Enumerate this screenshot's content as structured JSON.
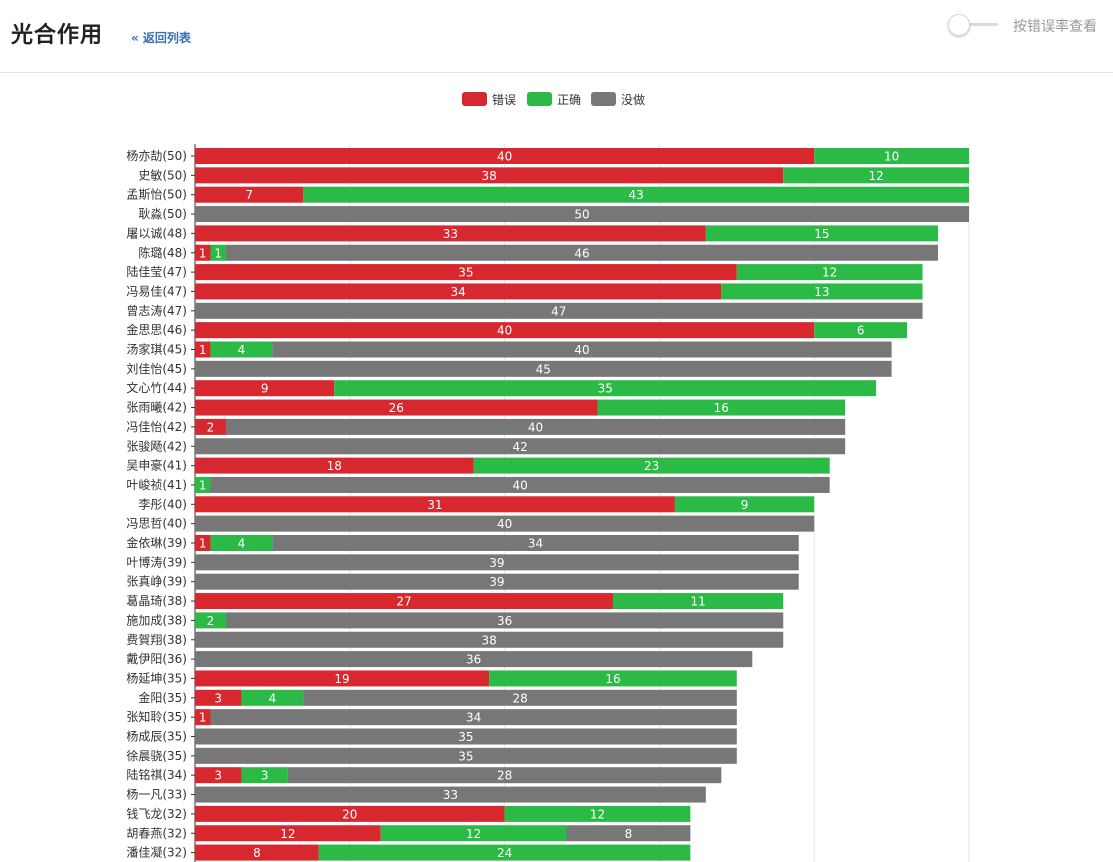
{
  "header": {
    "title": "光合作用",
    "back_link": "« 返回列表",
    "toggle_label": "按错误率查看",
    "toggle_on": false
  },
  "colors": {
    "wrong": "#d6282e",
    "correct": "#2cba47",
    "not_done": "#777777"
  },
  "chart_data": {
    "type": "bar",
    "orientation": "horizontal",
    "stacked": true,
    "xlim": [
      0,
      50
    ],
    "grid": true,
    "legend": "top",
    "series": [
      {
        "name": "错误",
        "color": "#d6282e",
        "values": [
          40,
          38,
          7,
          0,
          33,
          1,
          35,
          34,
          0,
          40,
          1,
          0,
          9,
          26,
          2,
          0,
          18,
          0,
          31,
          0,
          1,
          0,
          0,
          27,
          0,
          0,
          0,
          19,
          3,
          1,
          0,
          0,
          3,
          0,
          20,
          12,
          8
        ]
      },
      {
        "name": "正确",
        "color": "#2cba47",
        "values": [
          10,
          12,
          43,
          0,
          15,
          1,
          12,
          13,
          0,
          6,
          4,
          0,
          35,
          16,
          0,
          0,
          23,
          1,
          9,
          0,
          4,
          0,
          0,
          11,
          2,
          0,
          0,
          16,
          4,
          0,
          0,
          0,
          3,
          0,
          12,
          12,
          24
        ]
      },
      {
        "name": "没做",
        "color": "#777777",
        "values": [
          0,
          0,
          0,
          50,
          0,
          46,
          0,
          0,
          47,
          0,
          40,
          45,
          0,
          0,
          40,
          42,
          0,
          40,
          0,
          40,
          34,
          39,
          39,
          0,
          36,
          38,
          36,
          0,
          28,
          34,
          35,
          35,
          28,
          33,
          0,
          8,
          0
        ]
      }
    ],
    "categories": [
      "杨亦劼(50)",
      "史敏(50)",
      "孟斯怡(50)",
      "耿淼(50)",
      "屠以诚(48)",
      "陈璐(48)",
      "陆佳莹(47)",
      "冯易佳(47)",
      "曾志涛(47)",
      "金思思(46)",
      "汤家琪(45)",
      "刘佳怡(45)",
      "文心竹(44)",
      "张雨曦(42)",
      "冯佳怡(42)",
      "张骏飏(42)",
      "吴申豪(41)",
      "叶峻祯(41)",
      "李彤(40)",
      "冯思哲(40)",
      "金依琳(39)",
      "叶博涛(39)",
      "张真峥(39)",
      "葛晶琦(38)",
      "施加成(38)",
      "费賀翔(38)",
      "戴伊阳(36)",
      "杨延坤(35)",
      "金阳(35)",
      "张知聆(35)",
      "杨成辰(35)",
      "徐晨骁(35)",
      "陆铭祺(34)",
      "杨一凡(33)",
      "钱飞龙(32)",
      "胡春燕(32)",
      "潘佳凝(32)"
    ]
  }
}
